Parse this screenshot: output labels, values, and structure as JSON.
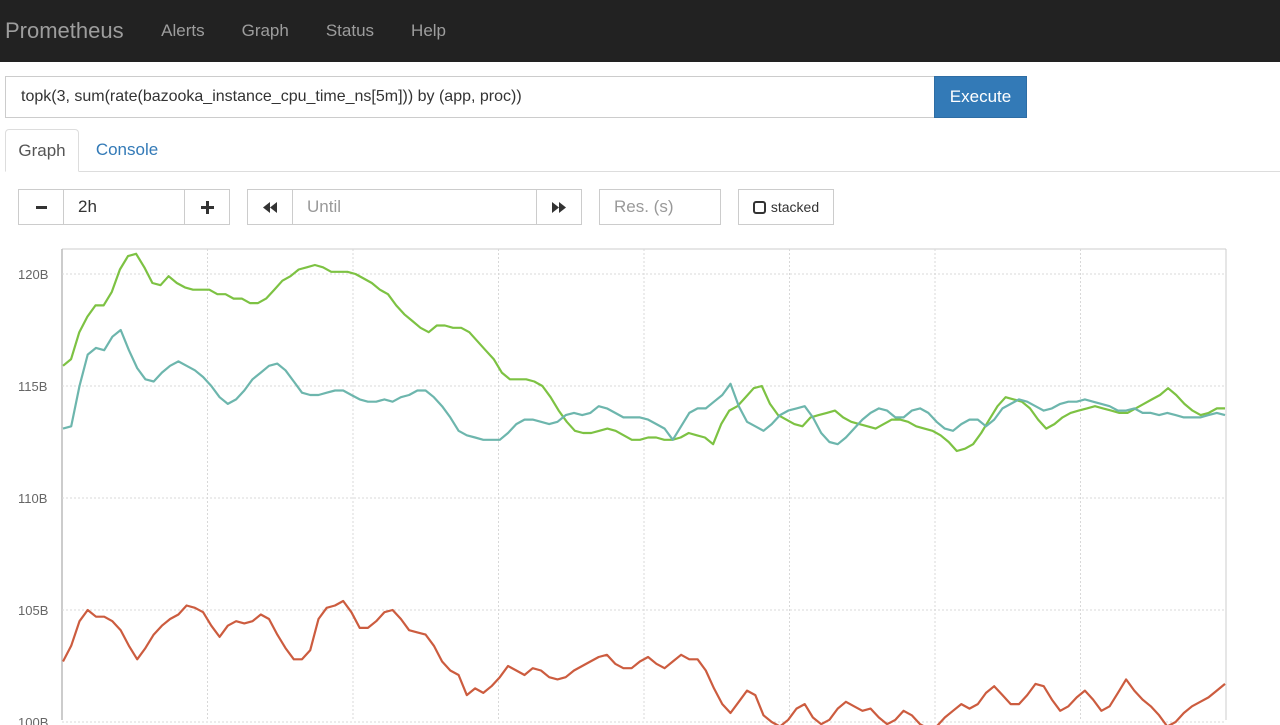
{
  "navbar": {
    "brand": "Prometheus",
    "links": [
      "Alerts",
      "Graph",
      "Status",
      "Help"
    ]
  },
  "query": {
    "expression": "topk(3, sum(rate(bazooka_instance_cpu_time_ns[5m])) by (app, proc))",
    "execute_label": "Execute"
  },
  "tabs": [
    {
      "label": "Graph",
      "active": true
    },
    {
      "label": "Console",
      "active": false
    }
  ],
  "controls": {
    "range_value": "2h",
    "until_placeholder": "Until",
    "resolution_placeholder": "Res. (s)",
    "stacked_label": "stacked",
    "icons": [
      "minus-icon",
      "plus-icon",
      "rewind-icon",
      "fast-forward-icon",
      "checkbox-icon"
    ]
  },
  "chart_data": {
    "type": "line",
    "title": "",
    "xlabel": "",
    "ylabel": "",
    "y_tick_labels": [
      "120B",
      "115B",
      "110B",
      "105B",
      "100B"
    ],
    "y_ticks": [
      120,
      115,
      110,
      105,
      100
    ],
    "ylim": [
      99.5,
      121
    ],
    "x_count": 8,
    "grid": true,
    "series": [
      {
        "color": "#7dc243",
        "values": [
          115.9,
          116.2,
          117.4,
          118.1,
          118.6,
          118.6,
          119.2,
          120.2,
          120.8,
          120.9,
          120.3,
          119.6,
          119.5,
          119.9,
          119.6,
          119.4,
          119.3,
          119.3,
          119.3,
          119.1,
          119.1,
          118.9,
          118.9,
          118.7,
          118.7,
          118.9,
          119.3,
          119.7,
          119.9,
          120.2,
          120.3,
          120.4,
          120.3,
          120.1,
          120.1,
          120.1,
          120.0,
          119.8,
          119.6,
          119.3,
          119.1,
          118.6,
          118.2,
          117.9,
          117.6,
          117.4,
          117.7,
          117.7,
          117.6,
          117.6,
          117.4,
          117.0,
          116.6,
          116.2,
          115.6,
          115.3,
          115.3,
          115.3,
          115.2,
          115.0,
          114.5,
          113.9,
          113.4,
          113.0,
          112.9,
          112.9,
          113.0,
          113.1,
          113.0,
          112.8,
          112.6,
          112.6,
          112.7,
          112.7,
          112.6,
          112.6,
          112.7,
          112.9,
          112.8,
          112.7,
          112.4,
          113.3,
          113.9,
          114.1,
          114.5,
          114.9,
          115.0,
          114.2,
          113.7,
          113.5,
          113.3,
          113.2,
          113.6,
          113.7,
          113.8,
          113.9,
          113.6,
          113.4,
          113.3,
          113.2,
          113.1,
          113.3,
          113.5,
          113.5,
          113.4,
          113.2,
          113.1,
          113.0,
          112.8,
          112.5,
          112.1,
          112.2,
          112.4,
          112.9,
          113.5,
          114.1,
          114.5,
          114.4,
          114.3,
          114.0,
          113.5,
          113.1,
          113.3,
          113.6,
          113.8,
          113.9,
          114.0,
          114.1,
          114.0,
          113.9,
          113.8,
          113.8,
          114.0,
          114.2,
          114.4,
          114.6,
          114.9,
          114.6,
          114.2,
          113.9,
          113.7,
          113.8,
          114.0,
          114.0
        ],
        "name": ""
      },
      {
        "color": "#6db6ad",
        "values": [
          113.1,
          113.2,
          115.0,
          116.4,
          116.7,
          116.6,
          117.2,
          117.5,
          116.6,
          115.8,
          115.3,
          115.2,
          115.6,
          115.9,
          116.1,
          115.9,
          115.7,
          115.4,
          115.0,
          114.5,
          114.2,
          114.4,
          114.8,
          115.3,
          115.6,
          115.9,
          116.0,
          115.7,
          115.2,
          114.7,
          114.6,
          114.6,
          114.7,
          114.8,
          114.8,
          114.6,
          114.4,
          114.3,
          114.3,
          114.4,
          114.3,
          114.5,
          114.6,
          114.8,
          114.8,
          114.5,
          114.1,
          113.6,
          113.0,
          112.8,
          112.7,
          112.6,
          112.6,
          112.6,
          112.9,
          113.3,
          113.5,
          113.5,
          113.4,
          113.3,
          113.4,
          113.7,
          113.8,
          113.7,
          113.8,
          114.1,
          114.0,
          113.8,
          113.6,
          113.6,
          113.6,
          113.5,
          113.3,
          113.1,
          112.6,
          113.2,
          113.8,
          114.0,
          114.0,
          114.3,
          114.6,
          115.1,
          114.1,
          113.4,
          113.2,
          113.0,
          113.3,
          113.7,
          113.9,
          114.0,
          114.1,
          113.6,
          112.9,
          112.5,
          112.4,
          112.7,
          113.1,
          113.5,
          113.8,
          114.0,
          113.9,
          113.6,
          113.6,
          113.9,
          114.0,
          113.8,
          113.4,
          113.1,
          113.0,
          113.3,
          113.5,
          113.5,
          113.2,
          113.5,
          114.0,
          114.2,
          114.4,
          114.3,
          114.1,
          113.9,
          114.0,
          114.2,
          114.3,
          114.3,
          114.4,
          114.3,
          114.2,
          114.1,
          113.9,
          113.9,
          114.0,
          113.8,
          113.8,
          113.7,
          113.8,
          113.7,
          113.6,
          113.6,
          113.6,
          113.7,
          113.8,
          113.7
        ],
        "name": ""
      },
      {
        "color": "#cc5c3f",
        "values": [
          102.7,
          103.4,
          104.5,
          105.0,
          104.7,
          104.7,
          104.5,
          104.1,
          103.4,
          102.8,
          103.3,
          103.9,
          104.3,
          104.6,
          104.8,
          105.2,
          105.1,
          104.9,
          104.3,
          103.8,
          104.3,
          104.5,
          104.4,
          104.5,
          104.8,
          104.6,
          103.9,
          103.3,
          102.8,
          102.8,
          103.2,
          104.6,
          105.1,
          105.2,
          105.4,
          104.9,
          104.2,
          104.2,
          104.5,
          104.9,
          105.0,
          104.6,
          104.1,
          104.0,
          103.9,
          103.4,
          102.7,
          102.3,
          102.1,
          101.2,
          101.5,
          101.3,
          101.6,
          102.0,
          102.5,
          102.3,
          102.1,
          102.4,
          102.3,
          102.0,
          101.9,
          102.0,
          102.3,
          102.5,
          102.7,
          102.9,
          103.0,
          102.6,
          102.4,
          102.4,
          102.7,
          102.9,
          102.6,
          102.4,
          102.7,
          103.0,
          102.8,
          102.8,
          102.3,
          101.5,
          100.8,
          100.4,
          100.9,
          101.4,
          101.2,
          100.3,
          100.0,
          99.8,
          100.1,
          100.6,
          100.8,
          100.2,
          99.9,
          100.1,
          100.6,
          100.9,
          100.7,
          100.5,
          100.6,
          100.2,
          99.9,
          100.1,
          100.5,
          100.3,
          99.9,
          99.7,
          99.8,
          100.2,
          100.5,
          100.8,
          100.6,
          100.8,
          101.3,
          101.6,
          101.2,
          100.8,
          100.8,
          101.2,
          101.7,
          101.6,
          101.0,
          100.5,
          100.7,
          101.1,
          101.4,
          101.0,
          100.5,
          100.7,
          101.3,
          101.9,
          101.4,
          101.0,
          100.7,
          100.3,
          99.8,
          100.0,
          100.4,
          100.7,
          100.9,
          101.1,
          101.4,
          101.7
        ],
        "name": ""
      }
    ]
  }
}
